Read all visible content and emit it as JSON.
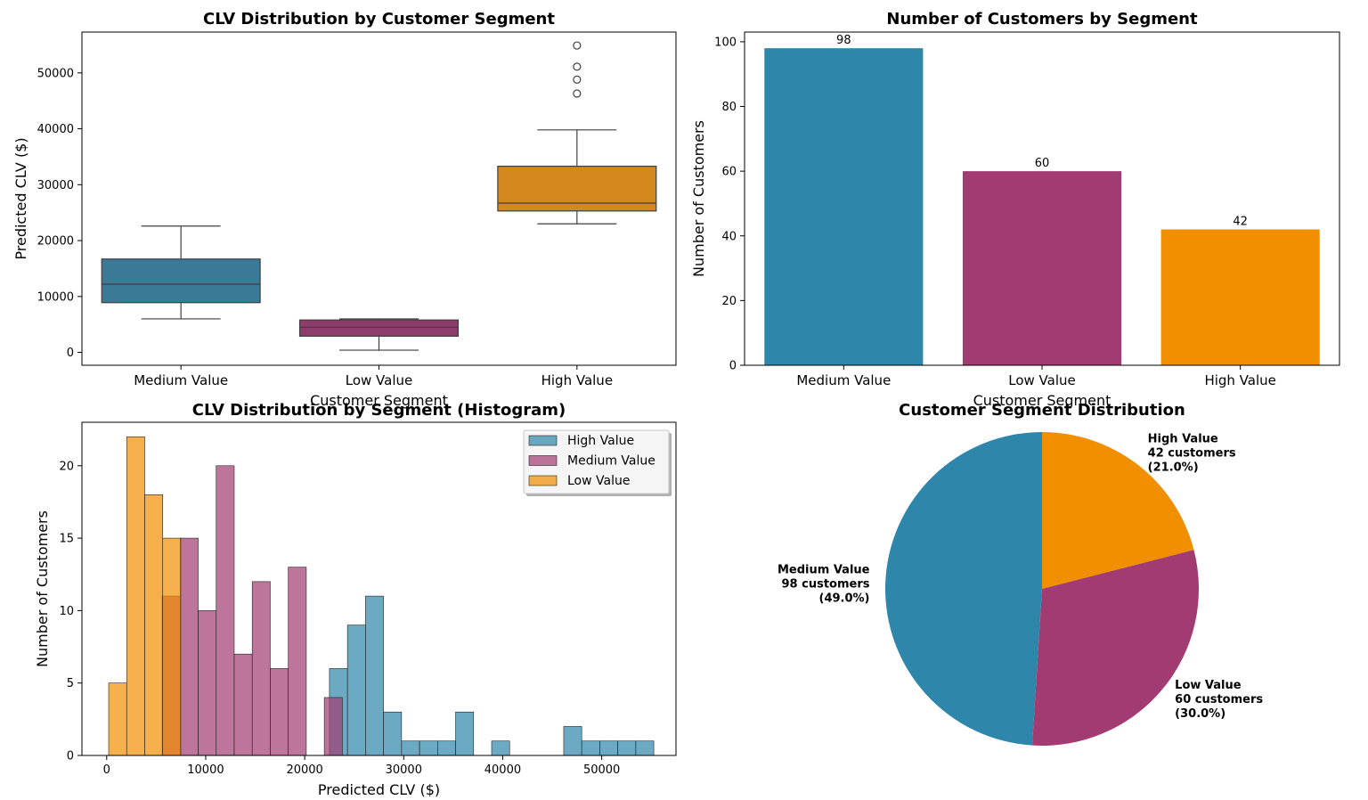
{
  "chart_data": [
    {
      "type": "box",
      "title": "CLV Distribution by Customer Segment",
      "xlabel": "Customer Segment",
      "ylabel": "Predicted CLV ($)",
      "ylim": [
        -2300,
        57300
      ],
      "yticks": [
        0,
        10000,
        20000,
        30000,
        40000,
        50000
      ],
      "categories": [
        "Medium Value",
        "Low Value",
        "High Value"
      ],
      "colors": [
        "#3a7a96",
        "#8e3c6c",
        "#d4881e"
      ],
      "boxes": [
        {
          "name": "Medium Value",
          "whisker_low": 6000,
          "q1": 8900,
          "median": 12200,
          "q3": 16700,
          "whisker_high": 22600,
          "outliers": []
        },
        {
          "name": "Low Value",
          "whisker_low": 400,
          "q1": 2900,
          "median": 4500,
          "q3": 5800,
          "whisker_high": 6000,
          "outliers": []
        },
        {
          "name": "High Value",
          "whisker_low": 23000,
          "q1": 25300,
          "median": 26700,
          "q3": 33300,
          "whisker_high": 39800,
          "outliers": [
            46300,
            48800,
            51100,
            54900
          ]
        }
      ]
    },
    {
      "type": "bar",
      "title": "Number of Customers by Segment",
      "xlabel": "Customer Segment",
      "ylabel": "Number of Customers",
      "ylim": [
        0,
        103
      ],
      "yticks": [
        0,
        20,
        40,
        60,
        80,
        100
      ],
      "categories": [
        "Medium Value",
        "Low Value",
        "High Value"
      ],
      "values": [
        98,
        60,
        42
      ],
      "colors": [
        "#2e86ab",
        "#a23b72",
        "#f18f01"
      ]
    },
    {
      "type": "histogram",
      "title": "CLV Distribution by Segment (Histogram)",
      "xlabel": "Predicted CLV ($)",
      "ylabel": "Number of Customers",
      "xlim": [
        -2500,
        57500
      ],
      "ylim": [
        0,
        23
      ],
      "xticks": [
        0,
        10000,
        20000,
        30000,
        40000,
        50000
      ],
      "yticks": [
        0,
        5,
        10,
        15,
        20
      ],
      "legend_position": "top-right",
      "series": [
        {
          "name": "High Value",
          "color": "#2e86ab",
          "bin_edges": [
            22500,
            24320,
            26140,
            27960,
            29780,
            31600,
            33420,
            35240,
            37060,
            38880,
            40700,
            42520,
            44340,
            46160,
            47980,
            49800,
            51620,
            53440,
            55260
          ],
          "counts": [
            6,
            9,
            11,
            3,
            1,
            1,
            1,
            3,
            0,
            1,
            0,
            0,
            0,
            2,
            1,
            1,
            1,
            1
          ]
        },
        {
          "name": "Medium Value",
          "color": "#a23b72",
          "bin_edges": [
            5600,
            7420,
            9240,
            11060,
            12880,
            14700,
            16520,
            18340,
            20160,
            21980,
            23800
          ],
          "counts": [
            11,
            15,
            10,
            20,
            7,
            12,
            6,
            13,
            0,
            4
          ]
        },
        {
          "name": "Low Value",
          "color": "#f18f01",
          "bin_edges": [
            200,
            2020,
            3840,
            5660,
            7480
          ],
          "counts": [
            5,
            22,
            18,
            15
          ]
        }
      ]
    },
    {
      "type": "pie",
      "title": "Customer Segment Distribution",
      "slices": [
        {
          "name": "High Value",
          "value": 42,
          "percent": 21.0,
          "color": "#f18f01",
          "label_lines": [
            "High Value",
            "42 customers",
            "(21.0%)"
          ]
        },
        {
          "name": "Low Value",
          "value": 60,
          "percent": 30.0,
          "color": "#a23b72",
          "label_lines": [
            "Low Value",
            "60 customers",
            "(30.0%)"
          ]
        },
        {
          "name": "Medium Value",
          "value": 98,
          "percent": 49.0,
          "color": "#2e86ab",
          "label_lines": [
            "Medium Value",
            "98 customers",
            "(49.0%)"
          ]
        }
      ]
    }
  ]
}
